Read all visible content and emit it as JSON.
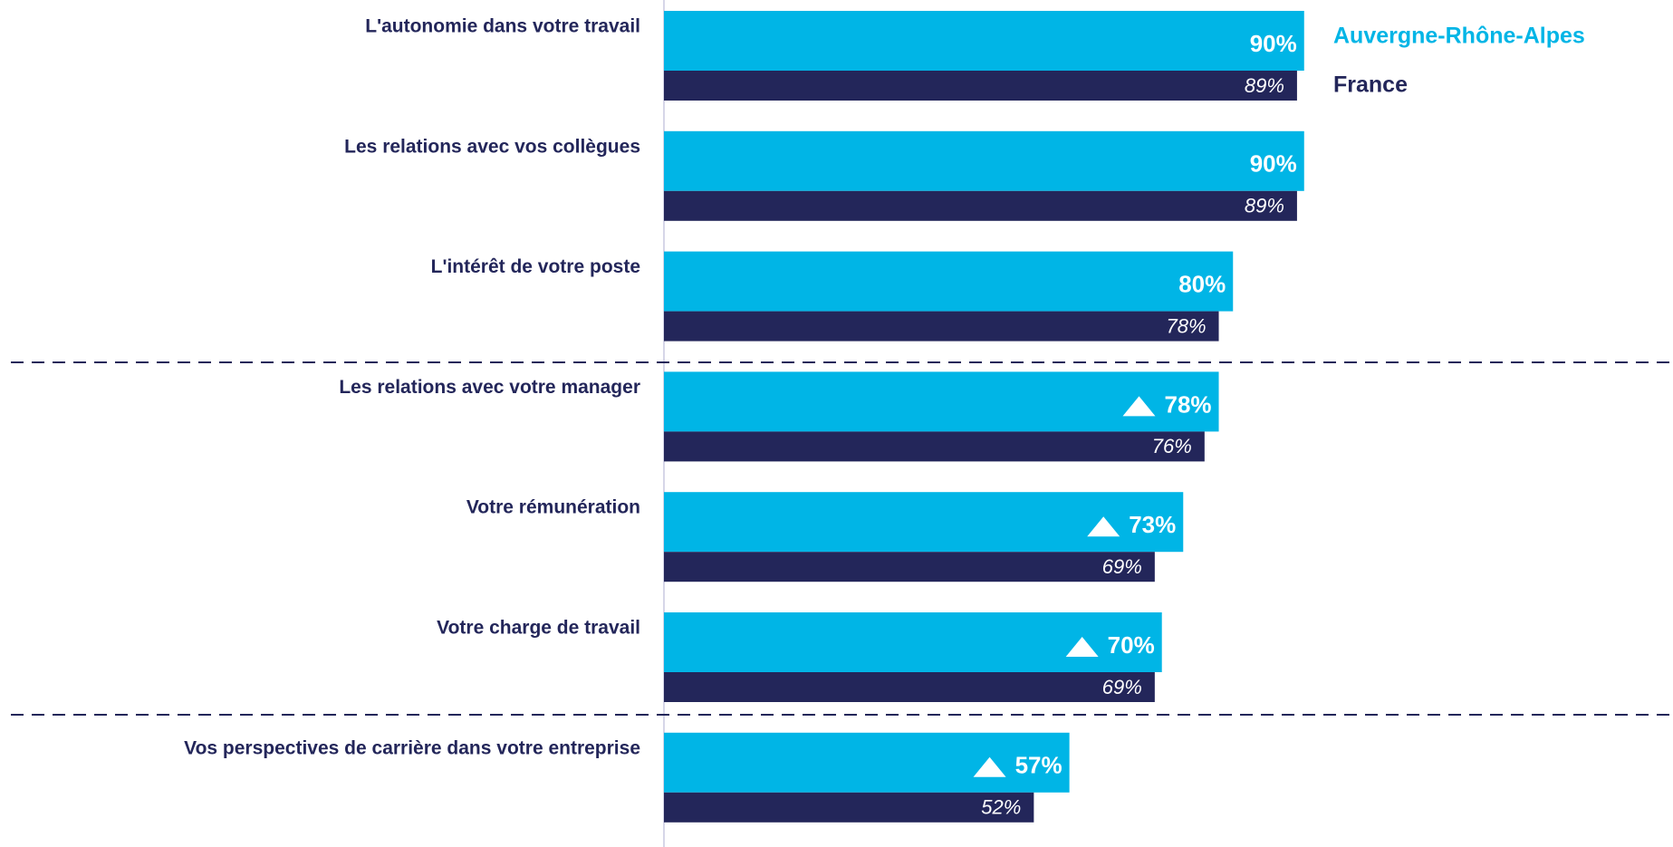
{
  "chart_data": {
    "type": "hbar",
    "categories": [
      "L'autonomie dans votre travail",
      "Les relations avec vos collègues",
      "L'intérêt de votre poste",
      "Les relations avec votre manager",
      "Votre rémunération",
      "Votre charge de travail",
      "Vos perspectives de carrière dans votre entreprise"
    ],
    "series": [
      {
        "name": "Auvergne-Rhône-Alpes",
        "color": "#00b5e6",
        "values": [
          90,
          90,
          80,
          78,
          73,
          70,
          57
        ],
        "value_labels": [
          "90%",
          "90%",
          "80%",
          "78%",
          "73%",
          "70%",
          "57%"
        ],
        "highlight": [
          false,
          false,
          false,
          true,
          true,
          true,
          true
        ]
      },
      {
        "name": "France",
        "color": "#23265a",
        "values": [
          89,
          89,
          78,
          76,
          69,
          69,
          52
        ],
        "value_labels": [
          "89%",
          "89%",
          "78%",
          "76%",
          "69%",
          "69%",
          "52%"
        ]
      }
    ],
    "xlim": [
      0,
      100
    ]
  }
}
